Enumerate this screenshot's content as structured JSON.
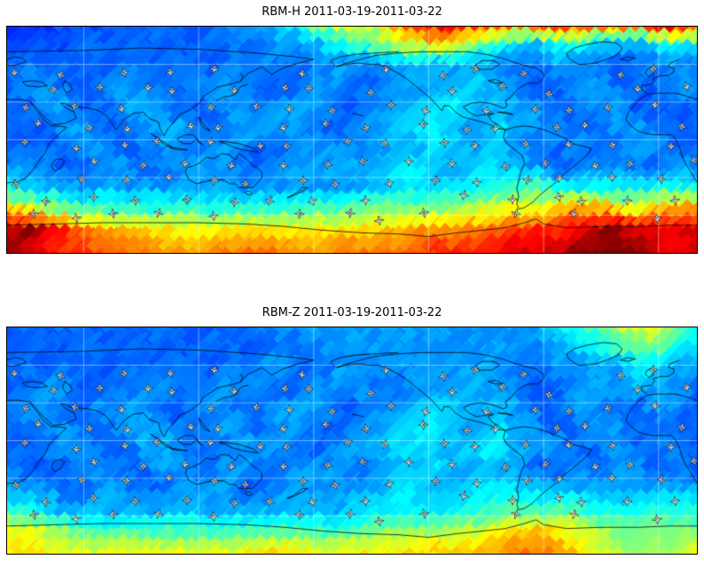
{
  "figure": {
    "background": "#ffffff",
    "title_color": "#000000"
  },
  "panels": [
    {
      "id": "rbm-h",
      "title": "RBM-H 2011-03-19-2011-03-22"
    },
    {
      "id": "rbm-z",
      "title": "RBM-Z 2011-03-19-2011-03-22"
    }
  ],
  "colors": {
    "coastline": "#000000",
    "gridline": "#ffffff",
    "marker_fill": "#ffffff",
    "marker_outline": "#222222",
    "marker_label": "#1a1a1a"
  },
  "map_decorations": {
    "gridlines": {
      "lat_deg": [
        60,
        30,
        0,
        -30,
        -60
      ],
      "lon_deg": [
        60,
        120,
        180,
        240,
        300,
        360
      ]
    },
    "markers": {
      "symbol": "white-4-point-star-with-tiny-dark-label",
      "rows": 9,
      "cols": 15,
      "y_start_pct": 20,
      "y_step_pct": 8,
      "x_start_pct": 2.5,
      "x_step_pct": 6.6,
      "stagger_pct": 3.3,
      "jitter_pct": 3.5,
      "drop_rate": 0.12,
      "seed": 42,
      "radius_px": 5.5
    }
  },
  "chart_data": [
    {
      "type": "heatmap",
      "variable": "RBM-H",
      "title": "RBM-H 2011-03-19-2011-03-22",
      "date_start": "2011-03-19",
      "date_end": "2011-03-22",
      "projection": "equirectangular, Pacific-centered world map",
      "lon_range": [
        20,
        380
      ],
      "lat_range": [
        -90,
        90
      ],
      "colormap": "jet",
      "value_scale": [
        1,
        10
      ],
      "grid_rows": 12,
      "grid_cols": 36,
      "texture_seed": 7,
      "values": [
        [
          2.5,
          2.5,
          2.5,
          2.8,
          2.8,
          2.8,
          3,
          3,
          3,
          3,
          3,
          3.2,
          3.5,
          3.5,
          4,
          4.5,
          5.5,
          6.5,
          6,
          6.5,
          7.5,
          8.5,
          9,
          9,
          8.5,
          8.5,
          8,
          8,
          8.5,
          8,
          7.8,
          7.5,
          7.8,
          8.5,
          9,
          8
        ],
        [
          2.8,
          2.8,
          2.8,
          2.8,
          3,
          3,
          3,
          3,
          3,
          3,
          3,
          3,
          3.2,
          3.2,
          3.5,
          3.5,
          4,
          4.5,
          5,
          5.5,
          6,
          6.5,
          7,
          6.5,
          5.5,
          4.5,
          4,
          4,
          4.5,
          4.5,
          4,
          3.8,
          3.8,
          4,
          4.5,
          4
        ],
        [
          3,
          3,
          3.2,
          3,
          3,
          3,
          3,
          3.3,
          3,
          3,
          3,
          3,
          3.3,
          3.5,
          3,
          3,
          3.3,
          3.5,
          3.3,
          3.3,
          3.5,
          3.7,
          3.7,
          3.5,
          3.5,
          3.3,
          3,
          3,
          3.5,
          3.5,
          3,
          3,
          3,
          3.3,
          3.5,
          3
        ],
        [
          3,
          3.5,
          3.5,
          3,
          3,
          3.3,
          3.5,
          3.5,
          3,
          3,
          3.3,
          3.5,
          3.5,
          3,
          3,
          3,
          3.5,
          3.5,
          3,
          3,
          3.5,
          3.5,
          3.7,
          3.7,
          4,
          3.7,
          3.5,
          3,
          3,
          3.5,
          3.5,
          3,
          3,
          3,
          3.5,
          3.5
        ],
        [
          3,
          3,
          3.5,
          3.5,
          3,
          3,
          3.5,
          3.7,
          3.5,
          3,
          3,
          3.5,
          3.5,
          3,
          3.5,
          3.5,
          3.5,
          3,
          3,
          3.5,
          3.7,
          3.7,
          4.2,
          4.2,
          3.7,
          3.7,
          3.5,
          3.5,
          3,
          3,
          3.5,
          3.5,
          3,
          3,
          3,
          3
        ],
        [
          3,
          3,
          3,
          3.5,
          3.5,
          3,
          3,
          3.5,
          3.7,
          3.5,
          3,
          3,
          3.5,
          3.7,
          3.5,
          3.5,
          3,
          3,
          3.5,
          3.7,
          3.7,
          4.2,
          4.2,
          3.7,
          3.7,
          4.2,
          3.7,
          3.5,
          3.5,
          3,
          3,
          3.5,
          3.5,
          3,
          3,
          3
        ],
        [
          3,
          3,
          3,
          3,
          3.5,
          3.5,
          3,
          3,
          3.5,
          3.5,
          3,
          3.5,
          3.5,
          3,
          3,
          3.5,
          3.5,
          3.5,
          3,
          3.5,
          3.7,
          3.7,
          4.2,
          3.7,
          3.7,
          3.7,
          3.5,
          3,
          3,
          3.5,
          3,
          3,
          3.5,
          3.5,
          3,
          3
        ],
        [
          3,
          3.5,
          3.5,
          3,
          3,
          3.5,
          3.5,
          3,
          3,
          3.5,
          3.7,
          3.5,
          3,
          3,
          3.5,
          3.5,
          3.5,
          3.7,
          3.7,
          3.7,
          4.2,
          4.2,
          3.7,
          3.7,
          4.2,
          4.2,
          3.7,
          3.5,
          3,
          3,
          3.5,
          3.5,
          3,
          3,
          3.5,
          3.5
        ],
        [
          4.5,
          4.2,
          3.7,
          3.7,
          3.5,
          3.5,
          3.5,
          3.5,
          3.5,
          3.5,
          3.5,
          3.5,
          3.5,
          3.5,
          3.5,
          3.5,
          3.5,
          3.5,
          3.7,
          4,
          4,
          4.2,
          4.2,
          4.2,
          4.2,
          4.5,
          5,
          5,
          4.5,
          4.5,
          4.5,
          4.5,
          4.5,
          4.5,
          4.5,
          4.5
        ],
        [
          7,
          6.5,
          6,
          5.5,
          5,
          5,
          5,
          4.8,
          4.8,
          4.8,
          4.8,
          4.8,
          4.8,
          4.8,
          4.8,
          4.8,
          5,
          5,
          5.5,
          5.5,
          5.5,
          5.5,
          5.5,
          6,
          6,
          6.5,
          6.5,
          6.5,
          7,
          7.5,
          7.5,
          7,
          6.5,
          7,
          7.5,
          7.5
        ],
        [
          9.2,
          10,
          9.2,
          8.5,
          7.8,
          7.5,
          7,
          7,
          6.8,
          6.5,
          6.5,
          6.8,
          6.8,
          6.8,
          6.5,
          6.5,
          6.8,
          6.8,
          6.8,
          7,
          7,
          7.5,
          7.5,
          7.5,
          7.8,
          7.8,
          8.5,
          8.5,
          8.5,
          9,
          9.5,
          10,
          9.2,
          9,
          9,
          9.2
        ],
        [
          10,
          9.2,
          9,
          8.5,
          8.5,
          8,
          7.8,
          7.8,
          7.5,
          7.5,
          7.5,
          7.8,
          8,
          8,
          7.8,
          7.5,
          7.5,
          7.8,
          7.8,
          8,
          8,
          8,
          8.5,
          8.5,
          8.5,
          9,
          9.2,
          9.2,
          9.2,
          10,
          10,
          10,
          10,
          9.2,
          9.2,
          9.2
        ]
      ]
    },
    {
      "type": "heatmap",
      "variable": "RBM-Z",
      "title": "RBM-Z 2011-03-19-2011-03-22",
      "date_start": "2011-03-19",
      "date_end": "2011-03-22",
      "projection": "equirectangular, Pacific-centered world map",
      "lon_range": [
        20,
        380
      ],
      "lat_range": [
        -90,
        90
      ],
      "colormap": "jet",
      "value_scale": [
        1,
        10
      ],
      "grid_rows": 12,
      "grid_cols": 36,
      "texture_seed": 7,
      "values": [
        [
          3,
          3,
          3,
          3,
          3,
          3,
          3,
          3,
          3,
          3,
          3,
          3,
          3,
          3.2,
          3.5,
          3.5,
          3.5,
          3.5,
          3.5,
          3.5,
          3.5,
          3.5,
          3.5,
          3.5,
          3.5,
          3.5,
          3.5,
          3.5,
          4,
          4.5,
          5,
          5.5,
          6.5,
          6.5,
          5.5,
          4.5
        ],
        [
          3,
          3,
          3,
          3,
          3,
          3,
          3,
          3,
          3,
          3,
          3,
          3,
          3,
          3,
          3,
          3.2,
          3.5,
          3.5,
          3.5,
          3.5,
          3.5,
          3.5,
          3.5,
          3.5,
          3.5,
          3.5,
          3.5,
          3.5,
          3.5,
          4,
          4.5,
          5,
          5.5,
          5.5,
          4.5,
          4
        ],
        [
          3,
          3,
          3,
          3,
          3,
          3,
          3,
          3.2,
          3,
          3,
          3,
          3,
          3.2,
          3.5,
          3.5,
          3,
          3,
          3.5,
          3.5,
          3.5,
          3.5,
          3.5,
          3.5,
          3.5,
          3.5,
          3.5,
          3,
          3,
          3.5,
          3.5,
          3.5,
          3.5,
          4.2,
          4.2,
          3.7,
          3.5
        ],
        [
          3,
          3,
          3.5,
          3.5,
          3,
          3,
          3,
          3.5,
          3.5,
          3,
          3,
          3.5,
          3.5,
          3.5,
          3,
          3,
          3.5,
          3.5,
          3.5,
          3,
          3,
          3.5,
          3.5,
          3.5,
          3.7,
          3.5,
          3.5,
          3,
          3,
          3.5,
          3.5,
          3.5,
          3.7,
          3.7,
          3.5,
          3
        ],
        [
          3,
          3.5,
          3.5,
          3,
          3,
          3.5,
          3.5,
          3.5,
          3,
          3,
          3.5,
          3.5,
          3,
          3,
          3.5,
          3.5,
          3.5,
          3,
          3,
          3.5,
          3.5,
          3.7,
          4.2,
          3.7,
          3.7,
          3.7,
          3.5,
          3,
          3,
          3.5,
          3.5,
          3,
          3,
          3.5,
          3.5,
          3
        ],
        [
          3,
          3,
          3.5,
          3.5,
          3,
          3,
          3.5,
          3.7,
          3.5,
          3,
          3,
          3.5,
          3.5,
          3,
          3.5,
          3.5,
          3,
          3,
          3.5,
          3.7,
          3.7,
          4.2,
          4.2,
          3.7,
          3.7,
          4.2,
          3.7,
          3.5,
          3,
          3,
          3.5,
          3.5,
          3,
          3,
          3,
          3
        ],
        [
          3,
          3,
          3,
          3.5,
          3.5,
          3,
          3,
          3.5,
          3.7,
          3.5,
          3,
          3,
          3.5,
          3.7,
          3.5,
          3,
          3,
          3.5,
          3.5,
          3.7,
          4.2,
          4.2,
          3.7,
          3.7,
          4.2,
          4.2,
          3.7,
          3.5,
          3.5,
          3,
          3,
          3.5,
          3,
          3,
          3.5,
          3
        ],
        [
          3,
          3,
          3,
          3,
          3.5,
          3.5,
          3,
          3,
          3.5,
          3.5,
          3,
          3.5,
          3.5,
          3,
          3,
          3.5,
          3.5,
          3.5,
          3,
          3.5,
          3.7,
          3.7,
          4.2,
          3.7,
          3.7,
          3.7,
          3.5,
          3,
          3,
          3.5,
          3,
          3.5,
          3.5,
          3,
          3,
          3
        ],
        [
          3.7,
          3.7,
          3.5,
          3,
          3,
          3.5,
          3.5,
          3,
          3,
          3.5,
          3.5,
          3.5,
          3,
          3,
          3.5,
          3.5,
          3.5,
          3.5,
          3.7,
          3.7,
          4.2,
          4.2,
          3.7,
          3.7,
          4.2,
          4.2,
          4.2,
          3.7,
          3.7,
          3.7,
          3.7,
          3.7,
          3.7,
          3.7,
          3.7,
          3.7
        ],
        [
          4.5,
          4.5,
          4.2,
          3.7,
          3.7,
          3.7,
          3.7,
          3.7,
          3.7,
          3.7,
          3.7,
          3.7,
          3.7,
          3.7,
          3.7,
          3.7,
          3.7,
          3.7,
          4.2,
          4.2,
          4.2,
          4.2,
          4.2,
          4.5,
          4.5,
          5,
          5,
          5,
          5,
          5,
          4.5,
          4.5,
          4.5,
          4.5,
          4.5,
          4.5
        ],
        [
          6.5,
          6.5,
          6,
          5.5,
          5,
          4.8,
          4.8,
          4.8,
          4.8,
          4.8,
          4.8,
          4.8,
          4.8,
          4.8,
          4.8,
          4.8,
          4.8,
          4.8,
          5,
          5.5,
          5.5,
          5.5,
          5.5,
          6,
          6,
          6.5,
          7,
          7,
          6.8,
          6.5,
          6,
          5.5,
          5.5,
          5.5,
          5.5,
          5.5
        ],
        [
          6.8,
          6.8,
          6.8,
          6.5,
          6.5,
          6.5,
          6.5,
          6.5,
          6.5,
          6.5,
          6.5,
          6.5,
          6.8,
          7,
          7,
          6.8,
          6.5,
          6.5,
          6.8,
          6.8,
          7,
          7,
          7,
          7,
          7.2,
          7.5,
          7.8,
          7.8,
          7.5,
          7,
          6.5,
          6,
          5.5,
          5.8,
          6,
          6.5
        ]
      ]
    }
  ]
}
